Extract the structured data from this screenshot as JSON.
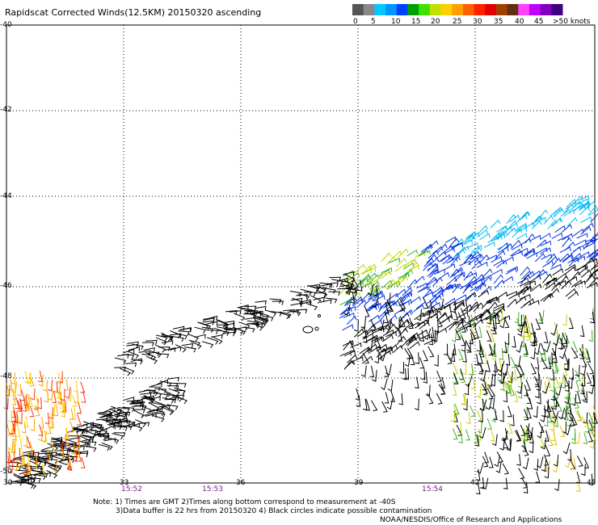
{
  "title": "Rapidscat Corrected Winds(12.5KM) 20150320 ascending",
  "colorbar": {
    "labels": [
      "0",
      "5",
      "10",
      "15",
      "20",
      "25",
      "30",
      "35",
      "40",
      "45",
      ">50 knots"
    ],
    "colors": [
      "#555555",
      "#888888",
      "#00c8ff",
      "#0096ff",
      "#0040ff",
      "#00a000",
      "#40e000",
      "#c0e000",
      "#ffd000",
      "#ffa000",
      "#ff6000",
      "#ff2000",
      "#e00000",
      "#a04000",
      "#603010",
      "#ff40ff",
      "#c000ff",
      "#8000c0",
      "#400080"
    ]
  },
  "axes": {
    "y_labels": [
      "-40",
      "-42",
      "-44",
      "-46",
      "-48",
      "-50"
    ],
    "x_labels": [
      "30",
      "33",
      "36",
      "39",
      "42",
      "45"
    ],
    "lat_range": [
      -50,
      -40
    ],
    "lon_range": [
      30,
      45
    ]
  },
  "time_labels": [
    "15:52",
    "15:53",
    "15:54"
  ],
  "notes": {
    "line1": "Note: 1) Times are GMT 2)Times along bottom correspond to measurement at -40S",
    "line2": "3)Data buffer is 22 hrs from 20150320 4) Black circles indicate possible contamination",
    "credit": "NOAA/NESDIS/Office of Research and Applications"
  },
  "colors": {
    "grid": "#000000",
    "time_label": "#7a1a8a"
  }
}
